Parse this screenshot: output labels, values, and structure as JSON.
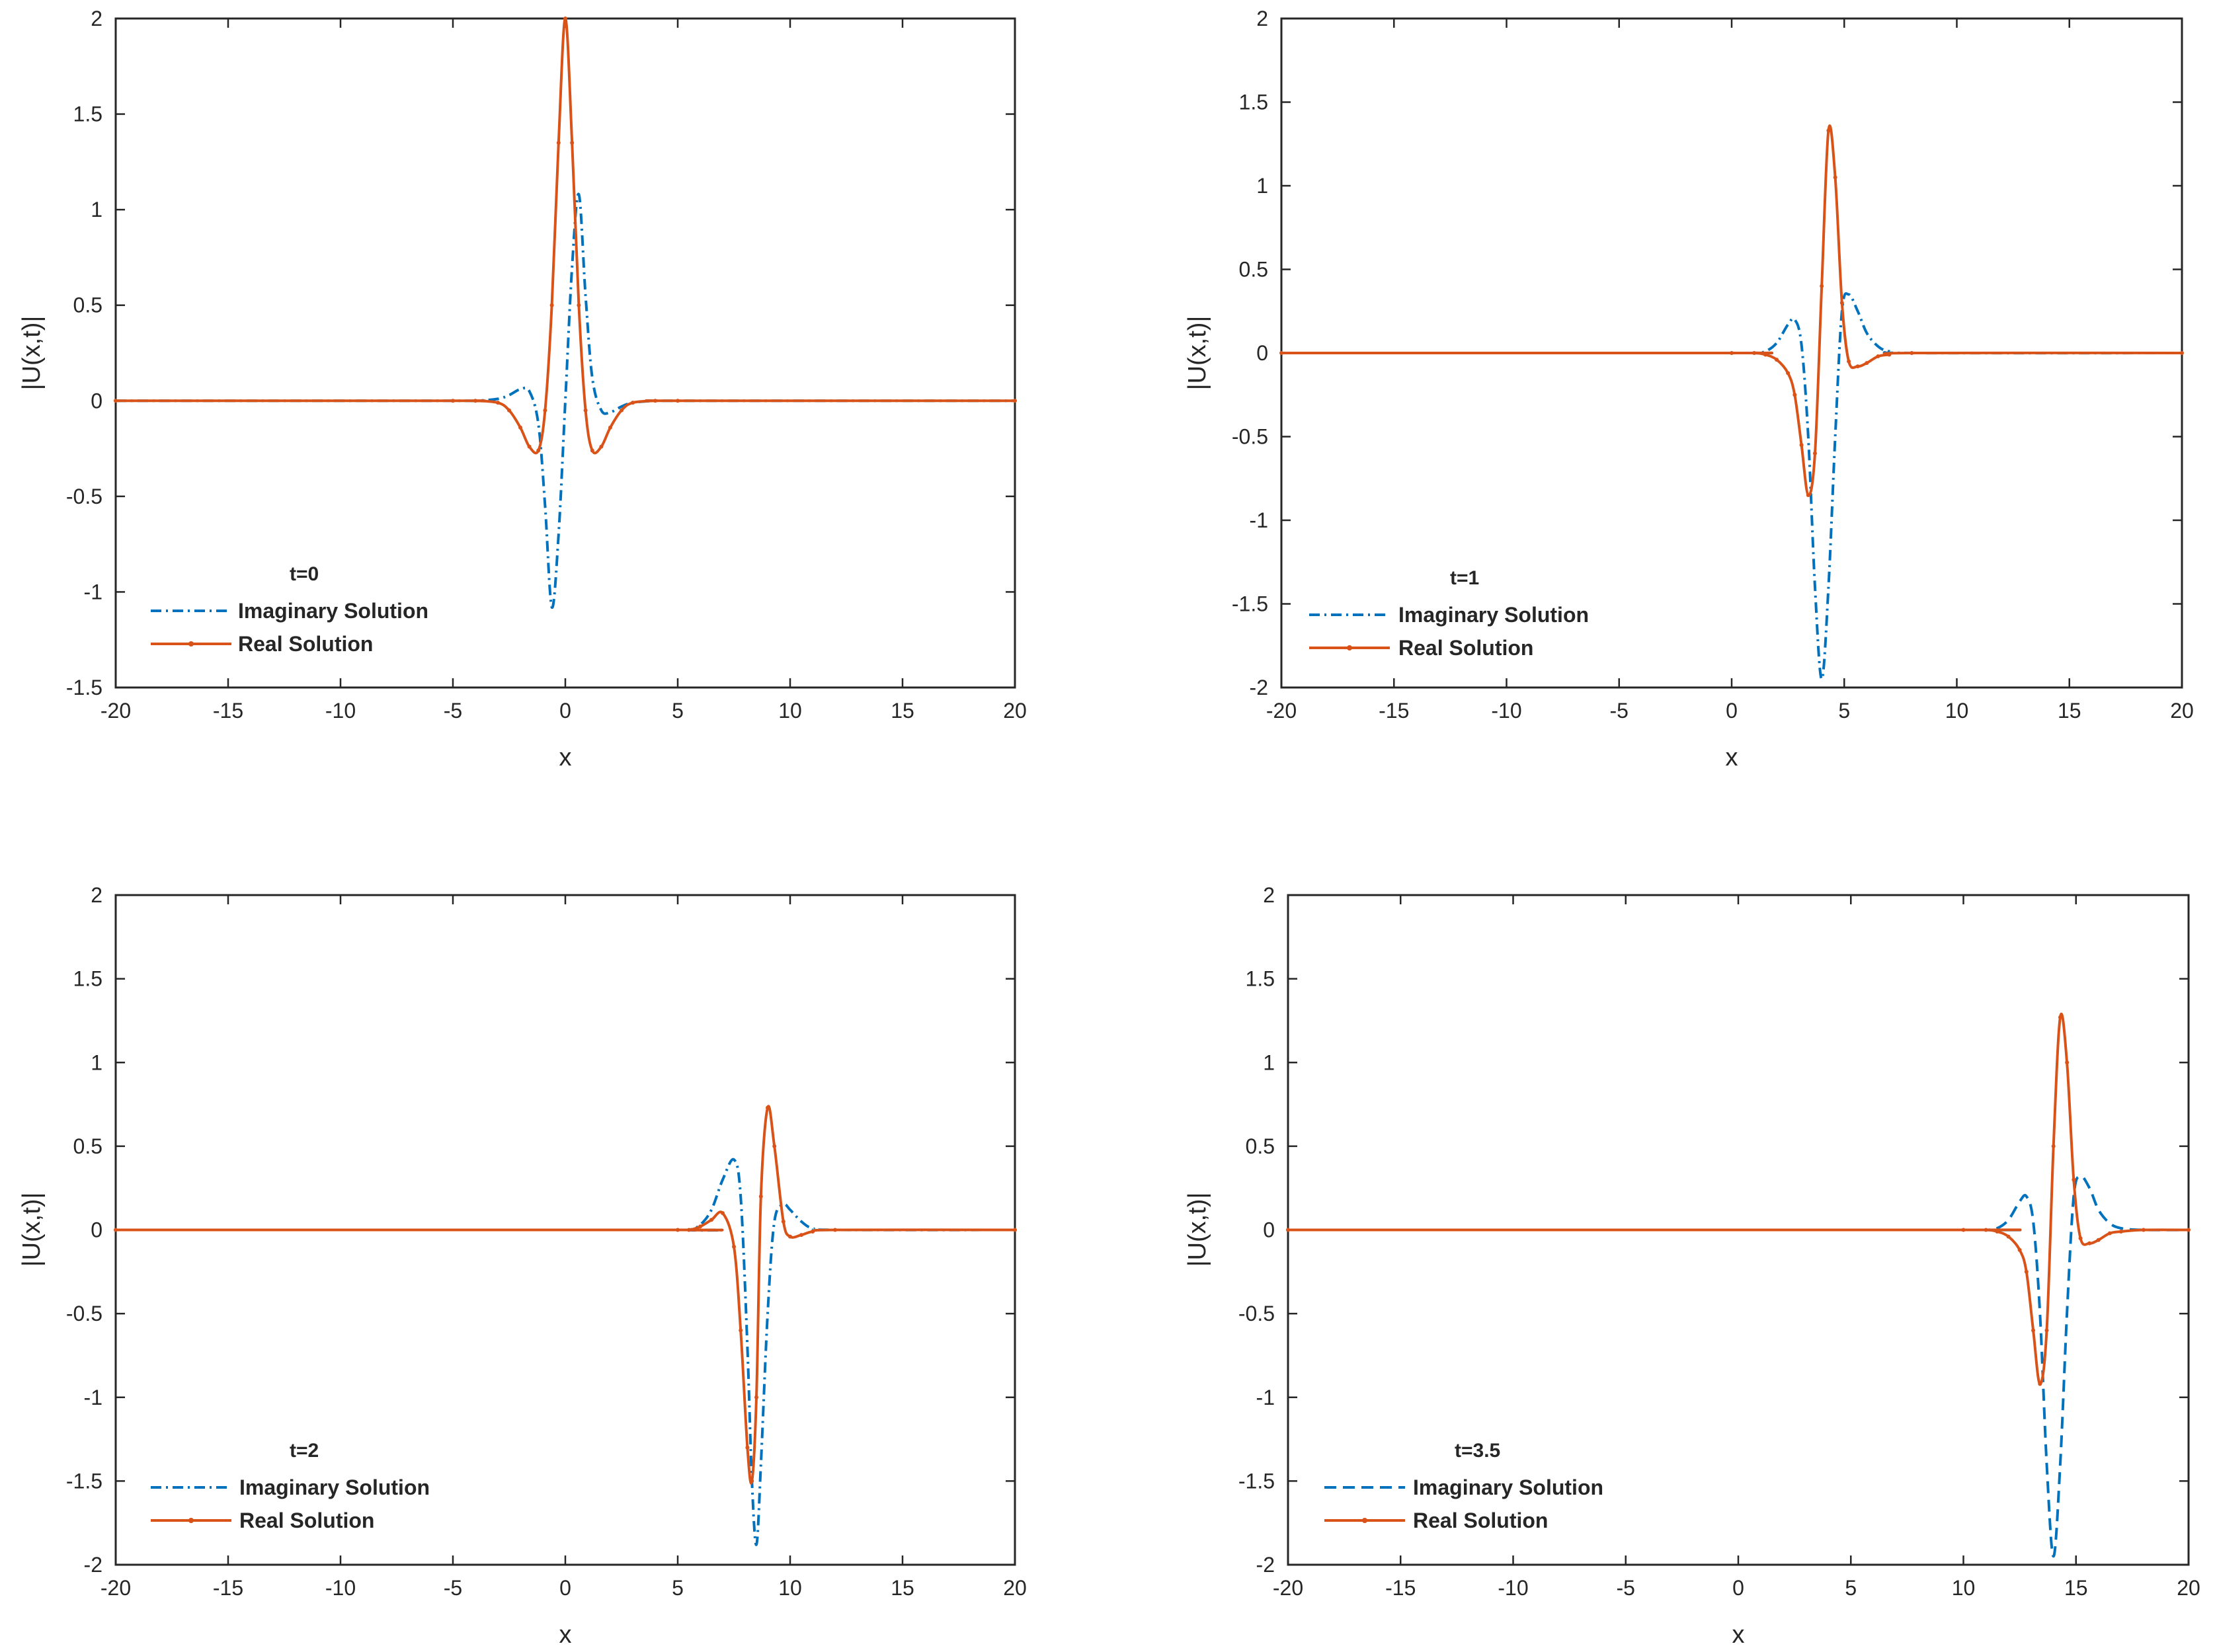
{
  "figure_title": "",
  "chart_data": [
    {
      "type": "line",
      "annotation": "t=0",
      "xlabel": "x",
      "ylabel": "|U(x,t)|",
      "xlim": [
        -20,
        20
      ],
      "ylim": [
        -1.5,
        2
      ],
      "xticks": [
        -20,
        -15,
        -10,
        -5,
        0,
        5,
        10,
        15,
        20
      ],
      "yticks": [
        -1.5,
        -1,
        -0.5,
        0,
        0.5,
        1,
        1.5,
        2
      ],
      "grid": false,
      "legend_position": "lower-left",
      "series": [
        {
          "name": "Imaginary Solution",
          "color": "#0072BD",
          "line_style": "dash-dot",
          "x": [
            -20,
            -5,
            -4,
            -3,
            -2.5,
            -2.0,
            -1.6,
            -1.2,
            -0.9,
            -0.6,
            -0.3,
            0.0,
            0.3,
            0.6,
            0.9,
            1.2,
            1.6,
            2.0,
            2.5,
            3.0,
            4.0,
            5,
            20
          ],
          "y": [
            0,
            0,
            0,
            0.01,
            0.03,
            0.06,
            0.05,
            -0.12,
            -0.55,
            -1.08,
            -0.7,
            0.0,
            0.7,
            1.08,
            0.55,
            0.12,
            -0.05,
            -0.06,
            -0.03,
            -0.01,
            0,
            0,
            0
          ]
        },
        {
          "name": "Real Solution",
          "color": "#D95319",
          "line_style": "solid-dot",
          "x": [
            -20,
            -5,
            -4,
            -3,
            -2.5,
            -2.0,
            -1.6,
            -1.2,
            -0.9,
            -0.6,
            -0.3,
            0.0,
            0.3,
            0.6,
            0.9,
            1.2,
            1.6,
            2.0,
            2.5,
            3.0,
            4.0,
            5,
            20
          ],
          "y": [
            0,
            0,
            0,
            -0.01,
            -0.05,
            -0.14,
            -0.24,
            -0.26,
            -0.05,
            0.5,
            1.35,
            2.0,
            1.35,
            0.5,
            -0.05,
            -0.26,
            -0.24,
            -0.14,
            -0.05,
            -0.01,
            0,
            0,
            0
          ]
        }
      ]
    },
    {
      "type": "line",
      "annotation": "t=1",
      "xlabel": "x",
      "ylabel": "|U(x,t)|",
      "xlim": [
        -20,
        20
      ],
      "ylim": [
        -2,
        2
      ],
      "xticks": [
        -20,
        -15,
        -10,
        -5,
        0,
        5,
        10,
        15,
        20
      ],
      "yticks": [
        -2,
        -1.5,
        -1,
        -0.5,
        0,
        0.5,
        1,
        1.5,
        2
      ],
      "grid": false,
      "legend_position": "lower-left",
      "series": [
        {
          "name": "Imaginary Solution",
          "color": "#0072BD",
          "line_style": "dash-dot",
          "x": [
            -20,
            0,
            1.0,
            1.5,
            2.0,
            2.5,
            2.8,
            3.1,
            3.4,
            3.7,
            4.0,
            4.3,
            4.6,
            4.9,
            5.2,
            5.6,
            6.0,
            6.5,
            7.0,
            8.0,
            20
          ],
          "y": [
            0,
            0,
            0,
            0.01,
            0.06,
            0.17,
            0.2,
            0.05,
            -0.5,
            -1.4,
            -1.95,
            -1.4,
            -0.5,
            0.25,
            0.35,
            0.25,
            0.12,
            0.04,
            0.01,
            0,
            0
          ]
        },
        {
          "name": "Real Solution",
          "color": "#D95319",
          "line_style": "solid-dot",
          "x": [
            -20,
            0,
            1.0,
            1.5,
            2.0,
            2.5,
            2.8,
            3.1,
            3.4,
            3.7,
            4.0,
            4.3,
            4.6,
            4.9,
            5.2,
            5.6,
            6.0,
            6.5,
            7.0,
            8.0,
            20
          ],
          "y": [
            0,
            0,
            0,
            -0.01,
            -0.04,
            -0.12,
            -0.25,
            -0.55,
            -0.85,
            -0.6,
            0.4,
            1.33,
            1.05,
            0.3,
            -0.05,
            -0.08,
            -0.06,
            -0.02,
            -0.01,
            0,
            0
          ]
        }
      ]
    },
    {
      "type": "line",
      "annotation": "t=2",
      "xlabel": "x",
      "ylabel": "|U(x,t)|",
      "xlim": [
        -20,
        20
      ],
      "ylim": [
        -2,
        2
      ],
      "xticks": [
        -20,
        -15,
        -10,
        -5,
        0,
        5,
        10,
        15,
        20
      ],
      "yticks": [
        -2,
        -1.5,
        -1,
        -0.5,
        0,
        0.5,
        1,
        1.5,
        2
      ],
      "grid": false,
      "legend_position": "lower-left",
      "series": [
        {
          "name": "Imaginary Solution",
          "color": "#0072BD",
          "line_style": "dash-dot",
          "x": [
            -20,
            5,
            5.5,
            6.0,
            6.5,
            7.0,
            7.5,
            7.8,
            8.1,
            8.3,
            8.5,
            8.7,
            9.0,
            9.3,
            9.7,
            10.0,
            10.5,
            11.0,
            12.0,
            20
          ],
          "y": [
            0,
            0,
            0,
            0.03,
            0.12,
            0.3,
            0.42,
            0.2,
            -0.7,
            -1.5,
            -1.88,
            -1.4,
            -0.5,
            0.05,
            0.15,
            0.12,
            0.05,
            0.01,
            0,
            0
          ]
        },
        {
          "name": "Real Solution",
          "color": "#D95319",
          "line_style": "solid-dot",
          "x": [
            -20,
            5,
            5.5,
            6.0,
            6.5,
            7.0,
            7.5,
            7.8,
            8.1,
            8.3,
            8.5,
            8.7,
            9.0,
            9.3,
            9.7,
            10.0,
            10.5,
            11.0,
            12.0,
            20
          ],
          "y": [
            0,
            0,
            0,
            0.02,
            0.06,
            0.1,
            -0.1,
            -0.6,
            -1.3,
            -1.5,
            -1.0,
            0.2,
            0.73,
            0.5,
            0.05,
            -0.04,
            -0.03,
            -0.01,
            0,
            0
          ]
        }
      ]
    },
    {
      "type": "line",
      "annotation": "t=3.5",
      "xlabel": "x",
      "ylabel": "|U(x,t)|",
      "xlim": [
        -20,
        20
      ],
      "ylim": [
        -2,
        2
      ],
      "xticks": [
        -20,
        -15,
        -10,
        -5,
        0,
        5,
        10,
        15,
        20
      ],
      "yticks": [
        -2,
        -1.5,
        -1,
        -0.5,
        0,
        0.5,
        1,
        1.5,
        2
      ],
      "grid": false,
      "legend_position": "lower-left",
      "series": [
        {
          "name": "Imaginary Solution",
          "color": "#0072BD",
          "line_style": "dashed",
          "x": [
            -20,
            10,
            11.0,
            11.5,
            12.0,
            12.5,
            12.8,
            13.1,
            13.4,
            13.7,
            14.0,
            14.3,
            14.6,
            14.9,
            15.2,
            15.6,
            16.0,
            16.5,
            17.0,
            18.0,
            20
          ],
          "y": [
            0,
            0,
            0,
            0.01,
            0.06,
            0.17,
            0.2,
            0.05,
            -0.5,
            -1.4,
            -1.95,
            -1.4,
            -0.5,
            0.2,
            0.32,
            0.25,
            0.12,
            0.04,
            0.01,
            0,
            0
          ]
        },
        {
          "name": "Real Solution",
          "color": "#D95319",
          "line_style": "solid-dot",
          "x": [
            -20,
            10,
            11.0,
            11.5,
            12.0,
            12.5,
            12.8,
            13.1,
            13.4,
            13.7,
            14.0,
            14.3,
            14.6,
            14.9,
            15.2,
            15.6,
            16.0,
            16.5,
            17.0,
            18.0,
            20
          ],
          "y": [
            0,
            0,
            0,
            -0.01,
            -0.04,
            -0.12,
            -0.25,
            -0.6,
            -0.92,
            -0.6,
            0.5,
            1.27,
            1.0,
            0.3,
            -0.05,
            -0.08,
            -0.06,
            -0.02,
            -0.01,
            0,
            0
          ]
        }
      ]
    }
  ]
}
